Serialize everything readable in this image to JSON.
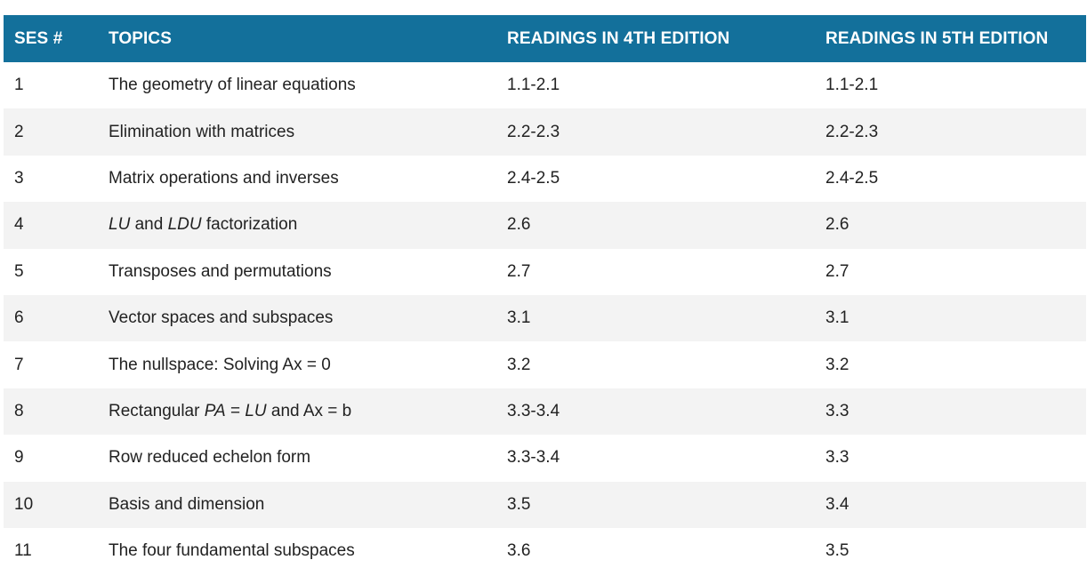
{
  "header": {
    "session": "SES #",
    "topics": "TOPICS",
    "readings4": "READINGS IN 4TH EDITION",
    "readings5": "READINGS IN 5TH EDITION"
  },
  "rows": [
    {
      "session": "1",
      "topic": [
        {
          "t": "The geometry of linear equations",
          "i": false
        }
      ],
      "r4": "1.1-2.1",
      "r5": "1.1-2.1"
    },
    {
      "session": "2",
      "topic": [
        {
          "t": "Elimination with matrices",
          "i": false
        }
      ],
      "r4": "2.2-2.3",
      "r5": "2.2-2.3"
    },
    {
      "session": "3",
      "topic": [
        {
          "t": "Matrix operations and inverses",
          "i": false
        }
      ],
      "r4": "2.4-2.5",
      "r5": "2.4-2.5"
    },
    {
      "session": "4",
      "topic": [
        {
          "t": "LU",
          "i": true
        },
        {
          "t": " and ",
          "i": false
        },
        {
          "t": "LDU",
          "i": true
        },
        {
          "t": " factorization",
          "i": false
        }
      ],
      "r4": "2.6",
      "r5": "2.6"
    },
    {
      "session": "5",
      "topic": [
        {
          "t": "Transposes and permutations",
          "i": false
        }
      ],
      "r4": "2.7",
      "r5": "2.7"
    },
    {
      "session": "6",
      "topic": [
        {
          "t": "Vector spaces and subspaces",
          "i": false
        }
      ],
      "r4": "3.1",
      "r5": "3.1"
    },
    {
      "session": "7",
      "topic": [
        {
          "t": "The nullspace: Solving Ax = 0",
          "i": false
        }
      ],
      "r4": "3.2",
      "r5": "3.2"
    },
    {
      "session": "8",
      "topic": [
        {
          "t": "Rectangular ",
          "i": false
        },
        {
          "t": "PA",
          "i": true
        },
        {
          "t": " = ",
          "i": false
        },
        {
          "t": "LU",
          "i": true
        },
        {
          "t": " and Ax = b",
          "i": false
        }
      ],
      "r4": "3.3-3.4",
      "r5": "3.3"
    },
    {
      "session": "9",
      "topic": [
        {
          "t": "Row reduced echelon form",
          "i": false
        }
      ],
      "r4": "3.3-3.4",
      "r5": "3.3"
    },
    {
      "session": "10",
      "topic": [
        {
          "t": "Basis and dimension",
          "i": false
        }
      ],
      "r4": "3.5",
      "r5": "3.4"
    },
    {
      "session": "11",
      "topic": [
        {
          "t": "The four fundamental subspaces",
          "i": false
        }
      ],
      "r4": "3.6",
      "r5": "3.5"
    }
  ]
}
